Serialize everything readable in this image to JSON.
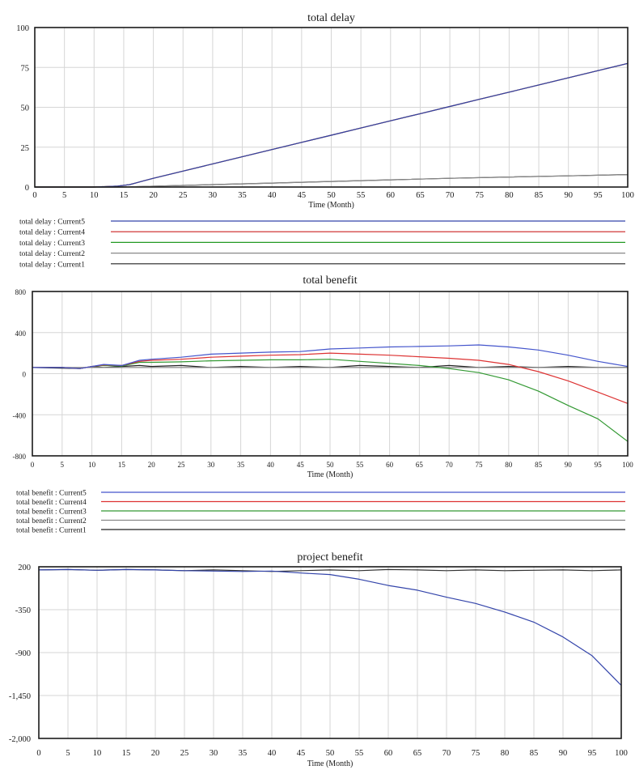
{
  "chart_data": [
    {
      "type": "line",
      "title": "total delay",
      "xlabel": "Time (Month)",
      "ylabel": "",
      "xlim": [
        0,
        100
      ],
      "ylim": [
        0,
        100
      ],
      "x_ticks": [
        "0",
        "5",
        "10",
        "15",
        "20",
        "25",
        "30",
        "35",
        "40",
        "45",
        "50",
        "55",
        "60",
        "65",
        "70",
        "75",
        "80",
        "85",
        "90",
        "95",
        "100"
      ],
      "y_ticks": [
        "100",
        "75",
        "50",
        "25",
        "0"
      ],
      "grid": true,
      "legend_position": "below",
      "series": [
        {
          "name": "total delay : Current5",
          "color": "#3344aa",
          "x": [
            0,
            10,
            14,
            16,
            17,
            18,
            20,
            25,
            30,
            35,
            40,
            45,
            50,
            55,
            60,
            65,
            70,
            75,
            80,
            85,
            90,
            95,
            100
          ],
          "values": [
            0,
            0,
            0.6,
            1.5,
            2.5,
            3.5,
            5.5,
            10,
            14.5,
            19,
            23.5,
            28,
            32.5,
            37,
            41.5,
            46,
            50.5,
            55,
            59.5,
            64,
            68.5,
            73,
            77.5
          ]
        },
        {
          "name": "total delay : Current4",
          "color": "#cc2222",
          "x": [
            0,
            10,
            14,
            16,
            17,
            18,
            20,
            25,
            30,
            35,
            40,
            45,
            50,
            55,
            60,
            65,
            70,
            75,
            80,
            85,
            90,
            95,
            100
          ],
          "values": [
            0,
            0,
            0.6,
            1.5,
            2.5,
            3.5,
            5.5,
            10,
            14.5,
            19,
            23.5,
            28,
            32.5,
            37,
            41.5,
            46,
            50.5,
            55,
            59.5,
            64,
            68.5,
            73,
            77.5
          ]
        },
        {
          "name": "total delay : Current3",
          "color": "#229922",
          "x": [
            0,
            10,
            14,
            16,
            17,
            18,
            20,
            25,
            30,
            35,
            40,
            45,
            50,
            55,
            60,
            65,
            70,
            75,
            80,
            85,
            90,
            95,
            100
          ],
          "values": [
            0,
            0,
            0.6,
            1.5,
            2.5,
            3.5,
            5.5,
            10,
            14.5,
            19,
            23.5,
            28,
            32.5,
            37,
            41.5,
            46,
            50.5,
            55,
            59.5,
            64,
            68.5,
            73,
            77.5
          ]
        },
        {
          "name": "total delay : Current2",
          "color": "#888888",
          "x": [
            0,
            15,
            20,
            30,
            40,
            50,
            60,
            70,
            80,
            90,
            100
          ],
          "values": [
            0,
            0,
            0.5,
            1.5,
            2.5,
            3.5,
            4.5,
            5.5,
            6.3,
            7,
            7.8
          ]
        },
        {
          "name": "total delay : Current1",
          "color": "#222222",
          "x": [
            0,
            15,
            20,
            30,
            40,
            50,
            60,
            70,
            80,
            90,
            100
          ],
          "values": [
            0,
            0,
            0.5,
            1.5,
            2.5,
            3.5,
            4.5,
            5.5,
            6.3,
            7,
            7.8
          ]
        }
      ]
    },
    {
      "type": "line",
      "title": "total benefit",
      "xlabel": "Time (Month)",
      "ylabel": "",
      "xlim": [
        0,
        100
      ],
      "ylim": [
        -800,
        800
      ],
      "x_ticks": [
        "0",
        "5",
        "10",
        "15",
        "20",
        "25",
        "30",
        "35",
        "40",
        "45",
        "50",
        "55",
        "60",
        "65",
        "70",
        "75",
        "80",
        "85",
        "90",
        "95",
        "100"
      ],
      "y_ticks": [
        "800",
        "400",
        "0",
        "-400",
        "-800"
      ],
      "grid": true,
      "legend_position": "below",
      "series": [
        {
          "name": "total benefit : Current5",
          "color": "#4455cc",
          "x": [
            0,
            5,
            8,
            10,
            12,
            15,
            18,
            20,
            25,
            30,
            35,
            40,
            45,
            50,
            55,
            60,
            65,
            70,
            75,
            80,
            85,
            90,
            95,
            100
          ],
          "values": [
            60,
            60,
            50,
            70,
            90,
            80,
            130,
            140,
            160,
            190,
            200,
            210,
            215,
            240,
            250,
            260,
            265,
            270,
            280,
            260,
            230,
            180,
            120,
            70
          ]
        },
        {
          "name": "total benefit : Current4",
          "color": "#dd3333",
          "x": [
            0,
            5,
            8,
            10,
            12,
            15,
            18,
            20,
            25,
            30,
            35,
            40,
            45,
            50,
            55,
            60,
            65,
            70,
            75,
            80,
            85,
            90,
            95,
            100
          ],
          "values": [
            60,
            60,
            50,
            70,
            85,
            80,
            120,
            130,
            140,
            160,
            170,
            180,
            185,
            200,
            190,
            180,
            165,
            150,
            130,
            90,
            20,
            -70,
            -180,
            -290
          ]
        },
        {
          "name": "total benefit : Current3",
          "color": "#339933",
          "x": [
            0,
            5,
            8,
            10,
            12,
            15,
            18,
            20,
            25,
            30,
            35,
            40,
            45,
            50,
            55,
            60,
            65,
            70,
            75,
            80,
            85,
            90,
            95,
            100
          ],
          "values": [
            60,
            60,
            50,
            70,
            80,
            75,
            110,
            110,
            115,
            125,
            130,
            135,
            135,
            140,
            120,
            100,
            80,
            50,
            10,
            -60,
            -170,
            -310,
            -440,
            -660
          ]
        },
        {
          "name": "total benefit : Current2",
          "color": "#888888",
          "x": [
            0,
            10,
            20,
            30,
            40,
            50,
            60,
            70,
            80,
            90,
            100
          ],
          "values": [
            60,
            60,
            60,
            60,
            60,
            60,
            60,
            60,
            60,
            60,
            60
          ]
        },
        {
          "name": "total benefit : Current1",
          "color": "#222222",
          "x": [
            0,
            8,
            10,
            12,
            15,
            18,
            20,
            25,
            30,
            35,
            40,
            45,
            50,
            55,
            60,
            65,
            70,
            75,
            80,
            85,
            90,
            95,
            100
          ],
          "values": [
            60,
            50,
            70,
            60,
            70,
            80,
            70,
            80,
            60,
            70,
            60,
            70,
            60,
            80,
            70,
            60,
            80,
            60,
            70,
            60,
            70,
            60,
            60
          ]
        }
      ]
    },
    {
      "type": "line",
      "title": "project benefit",
      "xlabel": "Time (Month)",
      "ylabel": "",
      "xlim": [
        0,
        100
      ],
      "ylim": [
        -2000,
        200
      ],
      "x_ticks": [
        "0",
        "5",
        "10",
        "15",
        "20",
        "25",
        "30",
        "35",
        "40",
        "45",
        "50",
        "55",
        "60",
        "65",
        "70",
        "75",
        "80",
        "85",
        "90",
        "95",
        "100"
      ],
      "y_ticks": [
        "200",
        "-350",
        "-900",
        "-1,450",
        "-2,000"
      ],
      "grid": true,
      "series": [
        {
          "name": "",
          "color": "#3344aa",
          "x": [
            0,
            5,
            10,
            15,
            20,
            25,
            30,
            35,
            40,
            45,
            50,
            55,
            60,
            65,
            70,
            75,
            80,
            85,
            90,
            95,
            100
          ],
          "values": [
            160,
            165,
            155,
            165,
            160,
            150,
            145,
            140,
            145,
            120,
            100,
            40,
            -40,
            -100,
            -190,
            -270,
            -380,
            -510,
            -700,
            -940,
            -1320
          ]
        },
        {
          "name": "",
          "color": "#333333",
          "x": [
            0,
            5,
            10,
            15,
            20,
            25,
            30,
            35,
            40,
            45,
            50,
            55,
            60,
            65,
            70,
            75,
            80,
            85,
            90,
            95,
            100
          ],
          "values": [
            160,
            165,
            155,
            165,
            160,
            150,
            160,
            150,
            140,
            150,
            160,
            150,
            165,
            160,
            150,
            160,
            150,
            155,
            160,
            150,
            160
          ]
        }
      ]
    }
  ]
}
